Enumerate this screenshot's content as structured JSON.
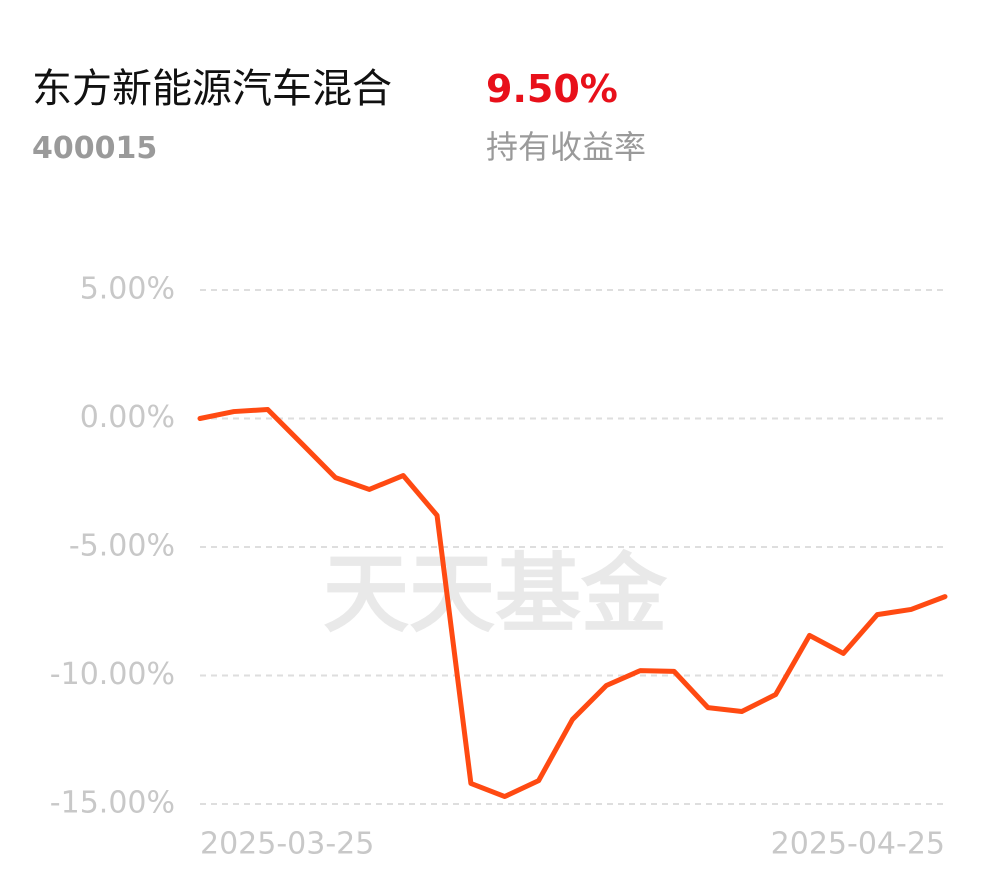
{
  "header": {
    "fund_name": "东方新能源汽车混合",
    "fund_code": "400015",
    "return_value": "9.50%",
    "return_label": "持有收益率"
  },
  "watermark": "天天基金",
  "chart_data": {
    "type": "line",
    "categories": [
      "2025-03-25",
      null,
      null,
      null,
      null,
      null,
      null,
      null,
      null,
      null,
      null,
      null,
      null,
      null,
      null,
      null,
      null,
      null,
      null,
      null,
      null,
      null,
      "2025-04-25"
    ],
    "series": [
      {
        "color": "#ff4a12",
        "values": [
          0.0,
          0.27,
          0.35,
          -0.97,
          -2.3,
          -2.76,
          -2.22,
          -3.77,
          -14.2,
          -14.71,
          -14.09,
          -11.71,
          -10.39,
          -9.81,
          -9.84,
          -11.25,
          -11.4,
          -10.74,
          -8.44,
          -9.14,
          -7.63,
          -7.43,
          -6.93
        ]
      }
    ],
    "ylim": [
      -15,
      5
    ],
    "yticks": [
      {
        "value": 5,
        "label": "5.00%"
      },
      {
        "value": 0,
        "label": "0.00%"
      },
      {
        "value": -5,
        "label": "-5.00%"
      },
      {
        "value": -10,
        "label": "-10.00%"
      },
      {
        "value": -15,
        "label": "-15.00%"
      }
    ],
    "grid": true
  }
}
